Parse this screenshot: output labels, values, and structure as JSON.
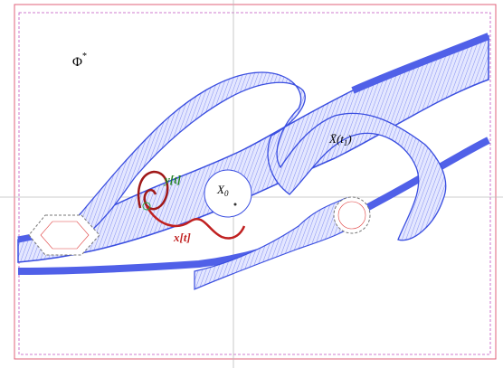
{
  "labels": {
    "phi": {
      "base": "Φ",
      "sup": "*"
    },
    "y": "y[t]",
    "x": "x[t]",
    "x0": {
      "base": "X",
      "sub": "0"
    },
    "xbar": {
      "base": "X̄(t",
      "sub": "1",
      "tail": ")"
    }
  }
}
